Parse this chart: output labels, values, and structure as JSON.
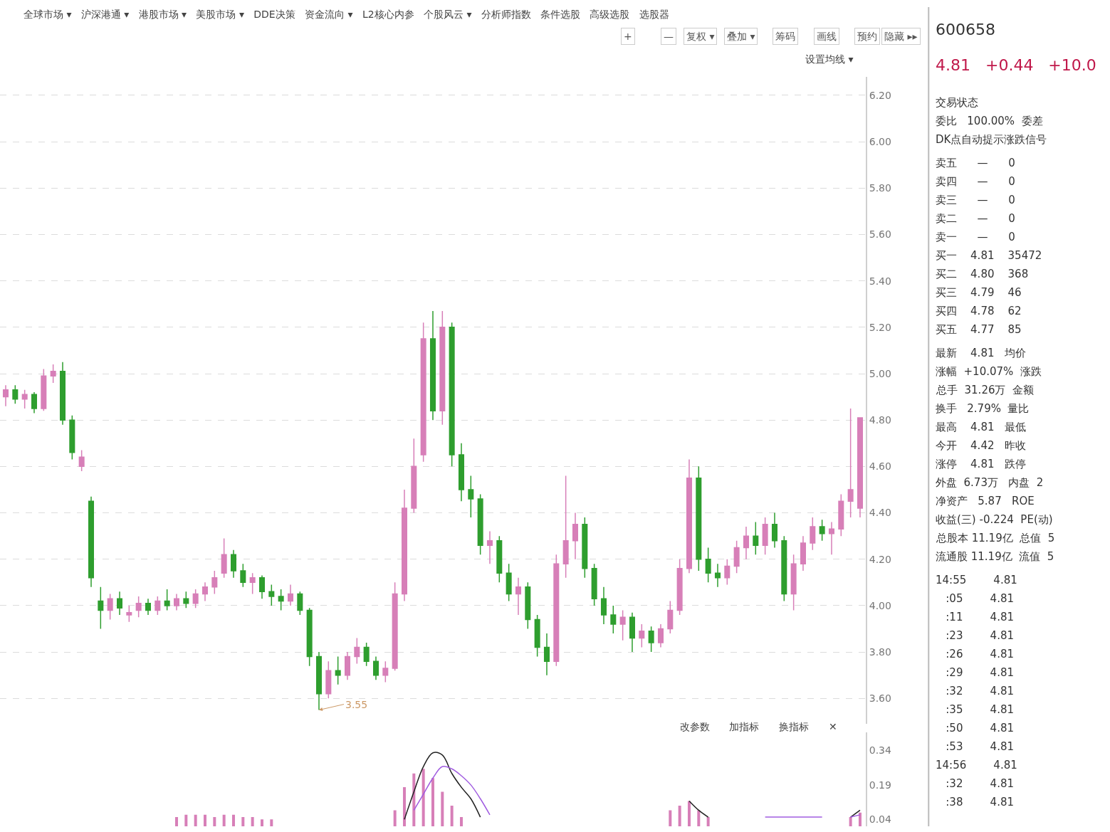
{
  "chart_data": [
    {
      "type": "candlestick",
      "categories": [
        null,
        null,
        null,
        null,
        null,
        null,
        null,
        null,
        null,
        null,
        null,
        null,
        null,
        null,
        null,
        null,
        null,
        null,
        null,
        null,
        null,
        null,
        null,
        null,
        null,
        null,
        null,
        null,
        null,
        null,
        null,
        null,
        null,
        null,
        null,
        null,
        null,
        null,
        null,
        null,
        null,
        null,
        null,
        null,
        null,
        null,
        null,
        null,
        null,
        null,
        null,
        null,
        null,
        null,
        null,
        null,
        null,
        null,
        null,
        null,
        null,
        null,
        null,
        null,
        null,
        null,
        null,
        null,
        null,
        null,
        null,
        null,
        null,
        null,
        null,
        null,
        null,
        null,
        null,
        null,
        null,
        null,
        null,
        null,
        null,
        null,
        null,
        null,
        null,
        null,
        null
      ],
      "ohlc": [
        [
          4.9,
          4.95,
          4.86,
          4.93
        ],
        [
          4.93,
          4.95,
          4.87,
          4.89
        ],
        [
          4.89,
          4.93,
          4.85,
          4.91
        ],
        [
          4.91,
          4.92,
          4.83,
          4.85
        ],
        [
          4.85,
          5.02,
          4.84,
          4.99
        ],
        [
          4.99,
          5.04,
          4.96,
          5.01
        ],
        [
          5.01,
          5.05,
          4.78,
          4.8
        ],
        [
          4.8,
          4.82,
          4.63,
          4.66
        ],
        [
          4.6,
          4.67,
          4.58,
          4.64
        ],
        [
          4.45,
          4.47,
          4.08,
          4.12
        ],
        [
          4.02,
          4.08,
          3.9,
          3.98
        ],
        [
          3.98,
          4.05,
          3.94,
          4.03
        ],
        [
          4.03,
          4.06,
          3.96,
          3.99
        ],
        [
          3.96,
          4.0,
          3.93,
          3.97
        ],
        [
          3.98,
          4.04,
          3.95,
          4.01
        ],
        [
          4.01,
          4.03,
          3.96,
          3.98
        ],
        [
          3.98,
          4.04,
          3.96,
          4.02
        ],
        [
          4.02,
          4.07,
          3.98,
          4.0
        ],
        [
          4.0,
          4.05,
          3.98,
          4.03
        ],
        [
          4.03,
          4.06,
          3.99,
          4.01
        ],
        [
          4.01,
          4.07,
          3.99,
          4.05
        ],
        [
          4.05,
          4.1,
          4.02,
          4.08
        ],
        [
          4.08,
          4.15,
          4.05,
          4.12
        ],
        [
          4.14,
          4.29,
          4.12,
          4.22
        ],
        [
          4.22,
          4.24,
          4.12,
          4.15
        ],
        [
          4.15,
          4.18,
          4.08,
          4.1
        ],
        [
          4.1,
          4.14,
          4.05,
          4.12
        ],
        [
          4.12,
          4.13,
          4.03,
          4.06
        ],
        [
          4.06,
          4.09,
          4.0,
          4.04
        ],
        [
          4.04,
          4.07,
          3.98,
          4.02
        ],
        [
          4.02,
          4.09,
          4.0,
          4.05
        ],
        [
          4.05,
          4.06,
          3.96,
          3.98
        ],
        [
          3.98,
          3.99,
          3.74,
          3.78
        ],
        [
          3.78,
          3.8,
          3.55,
          3.62
        ],
        [
          3.62,
          3.76,
          3.6,
          3.72
        ],
        [
          3.72,
          3.78,
          3.66,
          3.7
        ],
        [
          3.7,
          3.8,
          3.68,
          3.78
        ],
        [
          3.78,
          3.86,
          3.75,
          3.82
        ],
        [
          3.82,
          3.84,
          3.74,
          3.76
        ],
        [
          3.76,
          3.78,
          3.68,
          3.7
        ],
        [
          3.7,
          3.76,
          3.67,
          3.73
        ],
        [
          3.73,
          4.1,
          3.72,
          4.05
        ],
        [
          4.05,
          4.5,
          4.02,
          4.42
        ],
        [
          4.42,
          4.72,
          4.4,
          4.6
        ],
        [
          4.65,
          5.22,
          4.62,
          5.15
        ],
        [
          5.15,
          5.27,
          4.8,
          4.84
        ],
        [
          4.84,
          5.27,
          4.78,
          5.2
        ],
        [
          5.2,
          5.22,
          4.6,
          4.65
        ],
        [
          4.65,
          4.7,
          4.45,
          4.5
        ],
        [
          4.5,
          4.56,
          4.38,
          4.46
        ],
        [
          4.46,
          4.48,
          4.22,
          4.26
        ],
        [
          4.26,
          4.32,
          4.18,
          4.28
        ],
        [
          4.28,
          4.3,
          4.1,
          4.14
        ],
        [
          4.14,
          4.18,
          4.02,
          4.05
        ],
        [
          4.05,
          4.12,
          3.96,
          4.08
        ],
        [
          4.08,
          4.1,
          3.9,
          3.94
        ],
        [
          3.94,
          3.96,
          3.78,
          3.82
        ],
        [
          3.82,
          3.88,
          3.7,
          3.76
        ],
        [
          3.76,
          4.22,
          3.74,
          4.18
        ],
        [
          4.18,
          4.56,
          4.12,
          4.28
        ],
        [
          4.28,
          4.4,
          4.2,
          4.35
        ],
        [
          4.35,
          4.38,
          4.12,
          4.16
        ],
        [
          4.16,
          4.18,
          4.0,
          4.03
        ],
        [
          4.03,
          4.08,
          3.92,
          3.96
        ],
        [
          3.96,
          4.0,
          3.88,
          3.92
        ],
        [
          3.92,
          3.98,
          3.85,
          3.95
        ],
        [
          3.95,
          3.97,
          3.8,
          3.86
        ],
        [
          3.86,
          3.92,
          3.82,
          3.89
        ],
        [
          3.89,
          3.91,
          3.8,
          3.84
        ],
        [
          3.84,
          3.92,
          3.82,
          3.9
        ],
        [
          3.9,
          4.02,
          3.88,
          3.98
        ],
        [
          3.98,
          4.2,
          3.96,
          4.16
        ],
        [
          4.16,
          4.63,
          4.14,
          4.55
        ],
        [
          4.55,
          4.6,
          4.15,
          4.2
        ],
        [
          4.2,
          4.25,
          4.1,
          4.14
        ],
        [
          4.14,
          4.18,
          4.08,
          4.12
        ],
        [
          4.12,
          4.2,
          4.09,
          4.17
        ],
        [
          4.17,
          4.28,
          4.14,
          4.25
        ],
        [
          4.25,
          4.34,
          4.2,
          4.3
        ],
        [
          4.3,
          4.36,
          4.22,
          4.26
        ],
        [
          4.26,
          4.38,
          4.22,
          4.35
        ],
        [
          4.35,
          4.4,
          4.25,
          4.28
        ],
        [
          4.28,
          4.3,
          4.02,
          4.05
        ],
        [
          4.05,
          4.22,
          3.98,
          4.18
        ],
        [
          4.18,
          4.3,
          4.15,
          4.27
        ],
        [
          4.27,
          4.38,
          4.24,
          4.34
        ],
        [
          4.34,
          4.37,
          4.28,
          4.31
        ],
        [
          4.31,
          4.36,
          4.22,
          4.33
        ],
        [
          4.33,
          4.48,
          4.3,
          4.45
        ],
        [
          4.45,
          4.85,
          4.38,
          4.5
        ],
        [
          4.42,
          4.81,
          4.38,
          4.81
        ]
      ],
      "colors": [
        "#d77fb8",
        "#2e9e2e",
        "#d77fb8",
        "#2e9e2e",
        "#d77fb8",
        "#d77fb8",
        "#2e9e2e",
        "#2e9e2e",
        "#d77fb8",
        "#2e9e2e",
        "#2e9e2e",
        "#d77fb8",
        "#2e9e2e",
        "#d77fb8",
        "#d77fb8",
        "#2e9e2e",
        "#d77fb8",
        "#2e9e2e",
        "#d77fb8",
        "#2e9e2e",
        "#d77fb8",
        "#d77fb8",
        "#d77fb8",
        "#d77fb8",
        "#2e9e2e",
        "#2e9e2e",
        "#d77fb8",
        "#2e9e2e",
        "#2e9e2e",
        "#2e9e2e",
        "#d77fb8",
        "#2e9e2e",
        "#2e9e2e",
        "#2e9e2e",
        "#d77fb8",
        "#2e9e2e",
        "#d77fb8",
        "#d77fb8",
        "#2e9e2e",
        "#2e9e2e",
        "#d77fb8",
        "#d77fb8",
        "#d77fb8",
        "#d77fb8",
        "#d77fb8",
        "#2e9e2e",
        "#d77fb8",
        "#2e9e2e",
        "#2e9e2e",
        "#2e9e2e",
        "#2e9e2e",
        "#d77fb8",
        "#2e9e2e",
        "#2e9e2e",
        "#d77fb8",
        "#2e9e2e",
        "#2e9e2e",
        "#2e9e2e",
        "#d77fb8",
        "#d77fb8",
        "#d77fb8",
        "#2e9e2e",
        "#2e9e2e",
        "#2e9e2e",
        "#2e9e2e",
        "#d77fb8",
        "#2e9e2e",
        "#d77fb8",
        "#2e9e2e",
        "#d77fb8",
        "#d77fb8",
        "#d77fb8",
        "#d77fb8",
        "#2e9e2e",
        "#2e9e2e",
        "#2e9e2e",
        "#d77fb8",
        "#d77fb8",
        "#d77fb8",
        "#2e9e2e",
        "#d77fb8",
        "#2e9e2e",
        "#2e9e2e",
        "#d77fb8",
        "#d77fb8",
        "#d77fb8",
        "#2e9e2e",
        "#d77fb8",
        "#d77fb8",
        "#d77fb8",
        "#d77fb8"
      ],
      "ylim": [
        3.49,
        6.28
      ],
      "yticks": [
        {
          "value": 3.6,
          "label": "3.60"
        },
        {
          "value": 3.8,
          "label": "3.80"
        },
        {
          "value": 4.0,
          "label": "4.00"
        },
        {
          "value": 4.2,
          "label": "4.20"
        },
        {
          "value": 4.4,
          "label": "4.40"
        },
        {
          "value": 4.6,
          "label": "4.60"
        },
        {
          "value": 4.8,
          "label": "4.80"
        },
        {
          "value": 5.0,
          "label": "5.00"
        },
        {
          "value": 5.2,
          "label": "5.20"
        },
        {
          "value": 5.4,
          "label": "5.40"
        },
        {
          "value": 5.6,
          "label": "5.60"
        },
        {
          "value": 5.8,
          "label": "5.80"
        },
        {
          "value": 6.0,
          "label": "6.00"
        },
        {
          "value": 6.2,
          "label": "6.20"
        }
      ],
      "grid": "y",
      "legend": false,
      "annotations": [
        "全球市场 ▾   沪深港通 ▾   港股市场 ▾   美股市场 ▾   DDE决策   资金流向 ▾   L2核心内参   个股风云 ▾   分析师指数   条件选股   高级选股   选股器",
        "+",
        "—",
        "复权 ▾",
        "叠加 ▾",
        "筹码",
        "画线",
        "预约",
        "隐藏 ▸▸",
        "设置均线 ▾",
        "3.55"
      ]
    },
    {
      "type": "line",
      "categories": [
        null,
        null,
        null,
        null,
        null,
        null,
        null,
        null,
        null,
        null,
        null,
        null,
        null,
        null,
        null,
        null,
        null,
        null,
        null,
        null,
        null,
        null,
        null,
        null,
        null,
        null,
        null,
        null,
        null,
        null,
        null,
        null,
        null,
        null,
        null,
        null,
        null,
        null,
        null,
        null,
        null,
        null,
        null,
        null,
        null,
        null,
        null,
        null,
        null,
        null,
        null,
        null,
        null,
        null,
        null,
        null,
        null,
        null,
        null,
        null,
        null,
        null,
        null,
        null,
        null,
        null,
        null,
        null,
        null,
        null,
        null,
        null,
        null,
        null,
        null,
        null,
        null,
        null,
        null,
        null,
        null,
        null,
        null,
        null,
        null,
        null,
        null,
        null,
        null,
        null,
        null
      ],
      "series": [
        {
          "type": "bar",
          "color": "#d77fb8",
          "values": [
            null,
            null,
            null,
            null,
            null,
            null,
            null,
            null,
            null,
            null,
            null,
            null,
            null,
            null,
            null,
            null,
            null,
            null,
            0.05,
            0.06,
            0.06,
            0.06,
            0.05,
            0.06,
            0.06,
            0.05,
            0.05,
            0.04,
            0.04,
            null,
            null,
            null,
            null,
            null,
            null,
            null,
            null,
            null,
            null,
            null,
            null,
            0.08,
            0.18,
            0.24,
            0.26,
            0.22,
            0.16,
            0.1,
            0.05,
            null,
            null,
            null,
            null,
            null,
            null,
            null,
            null,
            null,
            null,
            null,
            null,
            null,
            null,
            null,
            null,
            null,
            null,
            null,
            null,
            null,
            0.08,
            0.1,
            0.12,
            0.08,
            0.05,
            null,
            null,
            null,
            null,
            null,
            null,
            null,
            null,
            null,
            null,
            null,
            null,
            null,
            null,
            0.05,
            0.07
          ]
        },
        {
          "type": "line",
          "color": "#222222",
          "values": [
            null,
            null,
            null,
            null,
            null,
            null,
            null,
            null,
            null,
            null,
            null,
            null,
            null,
            null,
            null,
            null,
            null,
            null,
            null,
            null,
            null,
            null,
            null,
            null,
            null,
            null,
            null,
            null,
            null,
            null,
            null,
            null,
            null,
            null,
            null,
            null,
            null,
            null,
            null,
            null,
            null,
            null,
            0.04,
            0.16,
            0.27,
            0.33,
            0.32,
            0.24,
            0.18,
            0.13,
            0.05,
            null,
            null,
            null,
            null,
            null,
            null,
            null,
            null,
            null,
            null,
            null,
            null,
            null,
            null,
            null,
            null,
            null,
            null,
            null,
            null,
            null,
            0.12,
            0.08,
            0.05,
            null,
            null,
            null,
            null,
            null,
            null,
            null,
            null,
            null,
            null,
            null,
            null,
            null,
            null,
            0.05,
            0.08
          ]
        },
        {
          "type": "line",
          "color": "#a05ce0",
          "values": [
            null,
            null,
            null,
            null,
            null,
            null,
            null,
            null,
            null,
            null,
            null,
            null,
            null,
            null,
            null,
            null,
            null,
            null,
            null,
            null,
            null,
            null,
            null,
            null,
            null,
            null,
            null,
            null,
            null,
            null,
            null,
            null,
            null,
            null,
            null,
            null,
            null,
            null,
            null,
            null,
            null,
            null,
            null,
            0.08,
            0.15,
            0.22,
            0.27,
            0.26,
            0.23,
            0.19,
            0.13,
            0.06,
            null,
            null,
            null,
            null,
            null,
            null,
            null,
            null,
            null,
            null,
            null,
            null,
            null,
            null,
            null,
            null,
            null,
            null,
            null,
            null,
            null,
            null,
            null,
            null,
            null,
            null,
            null,
            null,
            0.05,
            0.05,
            0.05,
            0.05,
            0.05,
            0.05,
            0.05,
            null,
            null,
            0.05,
            0.06
          ]
        }
      ],
      "ylim": [
        0.01,
        0.42
      ],
      "yticks": [
        0.34,
        0.19,
        0.04
      ],
      "legend": false,
      "annotations": [
        "改参数",
        "加指标",
        "换指标",
        "✕"
      ]
    },
    {
      "type": "other",
      "annotations": [
        "600658",
        "4.81   +0.44   +10.0",
        "交易状态",
        "委比   100.00%  委差",
        "DK点自动提示涨跌信号",
        "卖五      —      0",
        "卖四      —      0",
        "卖三      —      0",
        "卖二      —      0",
        "卖一      —      0",
        "买一    4.81    35472",
        "买二    4.80    368",
        "买三    4.79    46",
        "买四    4.78    62",
        "买五    4.77    85",
        "最新    4.81   均价",
        "涨幅  +10.07%  涨跌",
        "总手  31.26万  金额",
        "换手   2.79%  量比",
        "最高    4.81   最低",
        "今开    4.42   昨收",
        "涨停    4.81   跌停",
        "外盘  6.73万   内盘  2",
        "净资产   5.87   ROE",
        "收益(三) -0.224  PE(动)",
        "总股本 11.19亿  总值  5",
        "流通股 11.19亿  流值  5",
        "14:55        4.81",
        "   :05        4.81",
        "   :11        4.81",
        "   :23        4.81",
        "   :26        4.81",
        "   :29        4.81",
        "   :32        4.81",
        "   :35        4.81",
        "   :50        4.81",
        "   :53        4.81",
        "14:56        4.81",
        "   :32        4.81",
        "   :38        4.81"
      ]
    }
  ]
}
